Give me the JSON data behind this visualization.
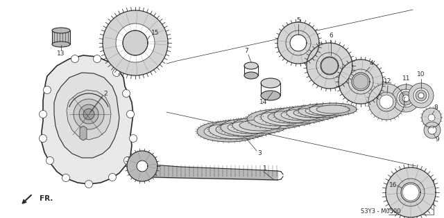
{
  "background_color": "#ffffff",
  "figure_width": 6.4,
  "figure_height": 3.15,
  "dpi": 100,
  "line_color": "#2a2a2a",
  "code_text": "S3Y3 - M0500",
  "fr_text": "FR.",
  "label_fontsize": 6.5,
  "code_fontsize": 6.0,
  "fr_fontsize": 7.5,
  "gear_gray": "#b8b8b8",
  "gear_dark": "#888888",
  "gear_light": "#d4d4d4",
  "case_gray": "#cccccc",
  "case_light": "#e8e8e8"
}
